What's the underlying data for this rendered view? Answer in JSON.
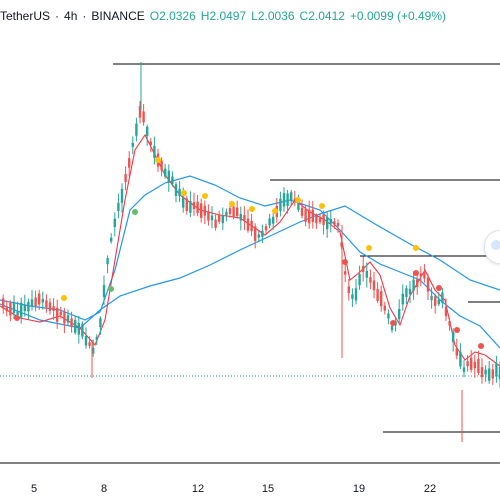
{
  "legend": {
    "symbol": "TetherUS",
    "interval": "4h",
    "exchange": "BINANCE",
    "open": "O2.0326",
    "high": "H2.0497",
    "low": "L2.0036",
    "close": "C2.0412",
    "change": "+0.0099 (+0.49%)",
    "separator": "·"
  },
  "colors": {
    "up": "#26a69a",
    "down": "#ef5350",
    "ma_fast": "#f23645",
    "ma_slow": "#2196f3",
    "ma_mid": "#26a69a",
    "signal_yellow": "#ffc107",
    "signal_green": "#66bb6a",
    "signal_red": "#ef5350",
    "level_line": "#000000",
    "price_line": "#26a69a"
  },
  "time_axis": {
    "labels": [
      "5",
      "8",
      "12",
      "15",
      "19",
      "22"
    ]
  },
  "scroll_button": {
    "icon": "scroll-to-realtime-icon"
  }
}
